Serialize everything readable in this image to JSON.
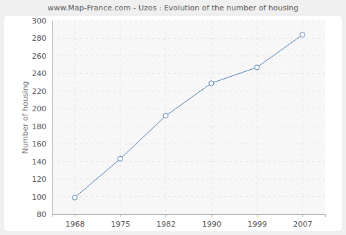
{
  "chart_data": {
    "type": "line",
    "title": "www.Map-France.com - Uzos : Evolution of the number of housing",
    "y_label": "Number of housing",
    "categories": [
      1968,
      1975,
      1982,
      1990,
      1999,
      2007
    ],
    "values": [
      99,
      143,
      192,
      229,
      247,
      284
    ],
    "color": "#4a76a8",
    "marker": "circle",
    "grid": true,
    "ylim": [
      80,
      300
    ],
    "yticks": [
      80,
      100,
      120,
      140,
      160,
      180,
      200,
      220,
      240,
      260,
      280,
      300
    ]
  }
}
